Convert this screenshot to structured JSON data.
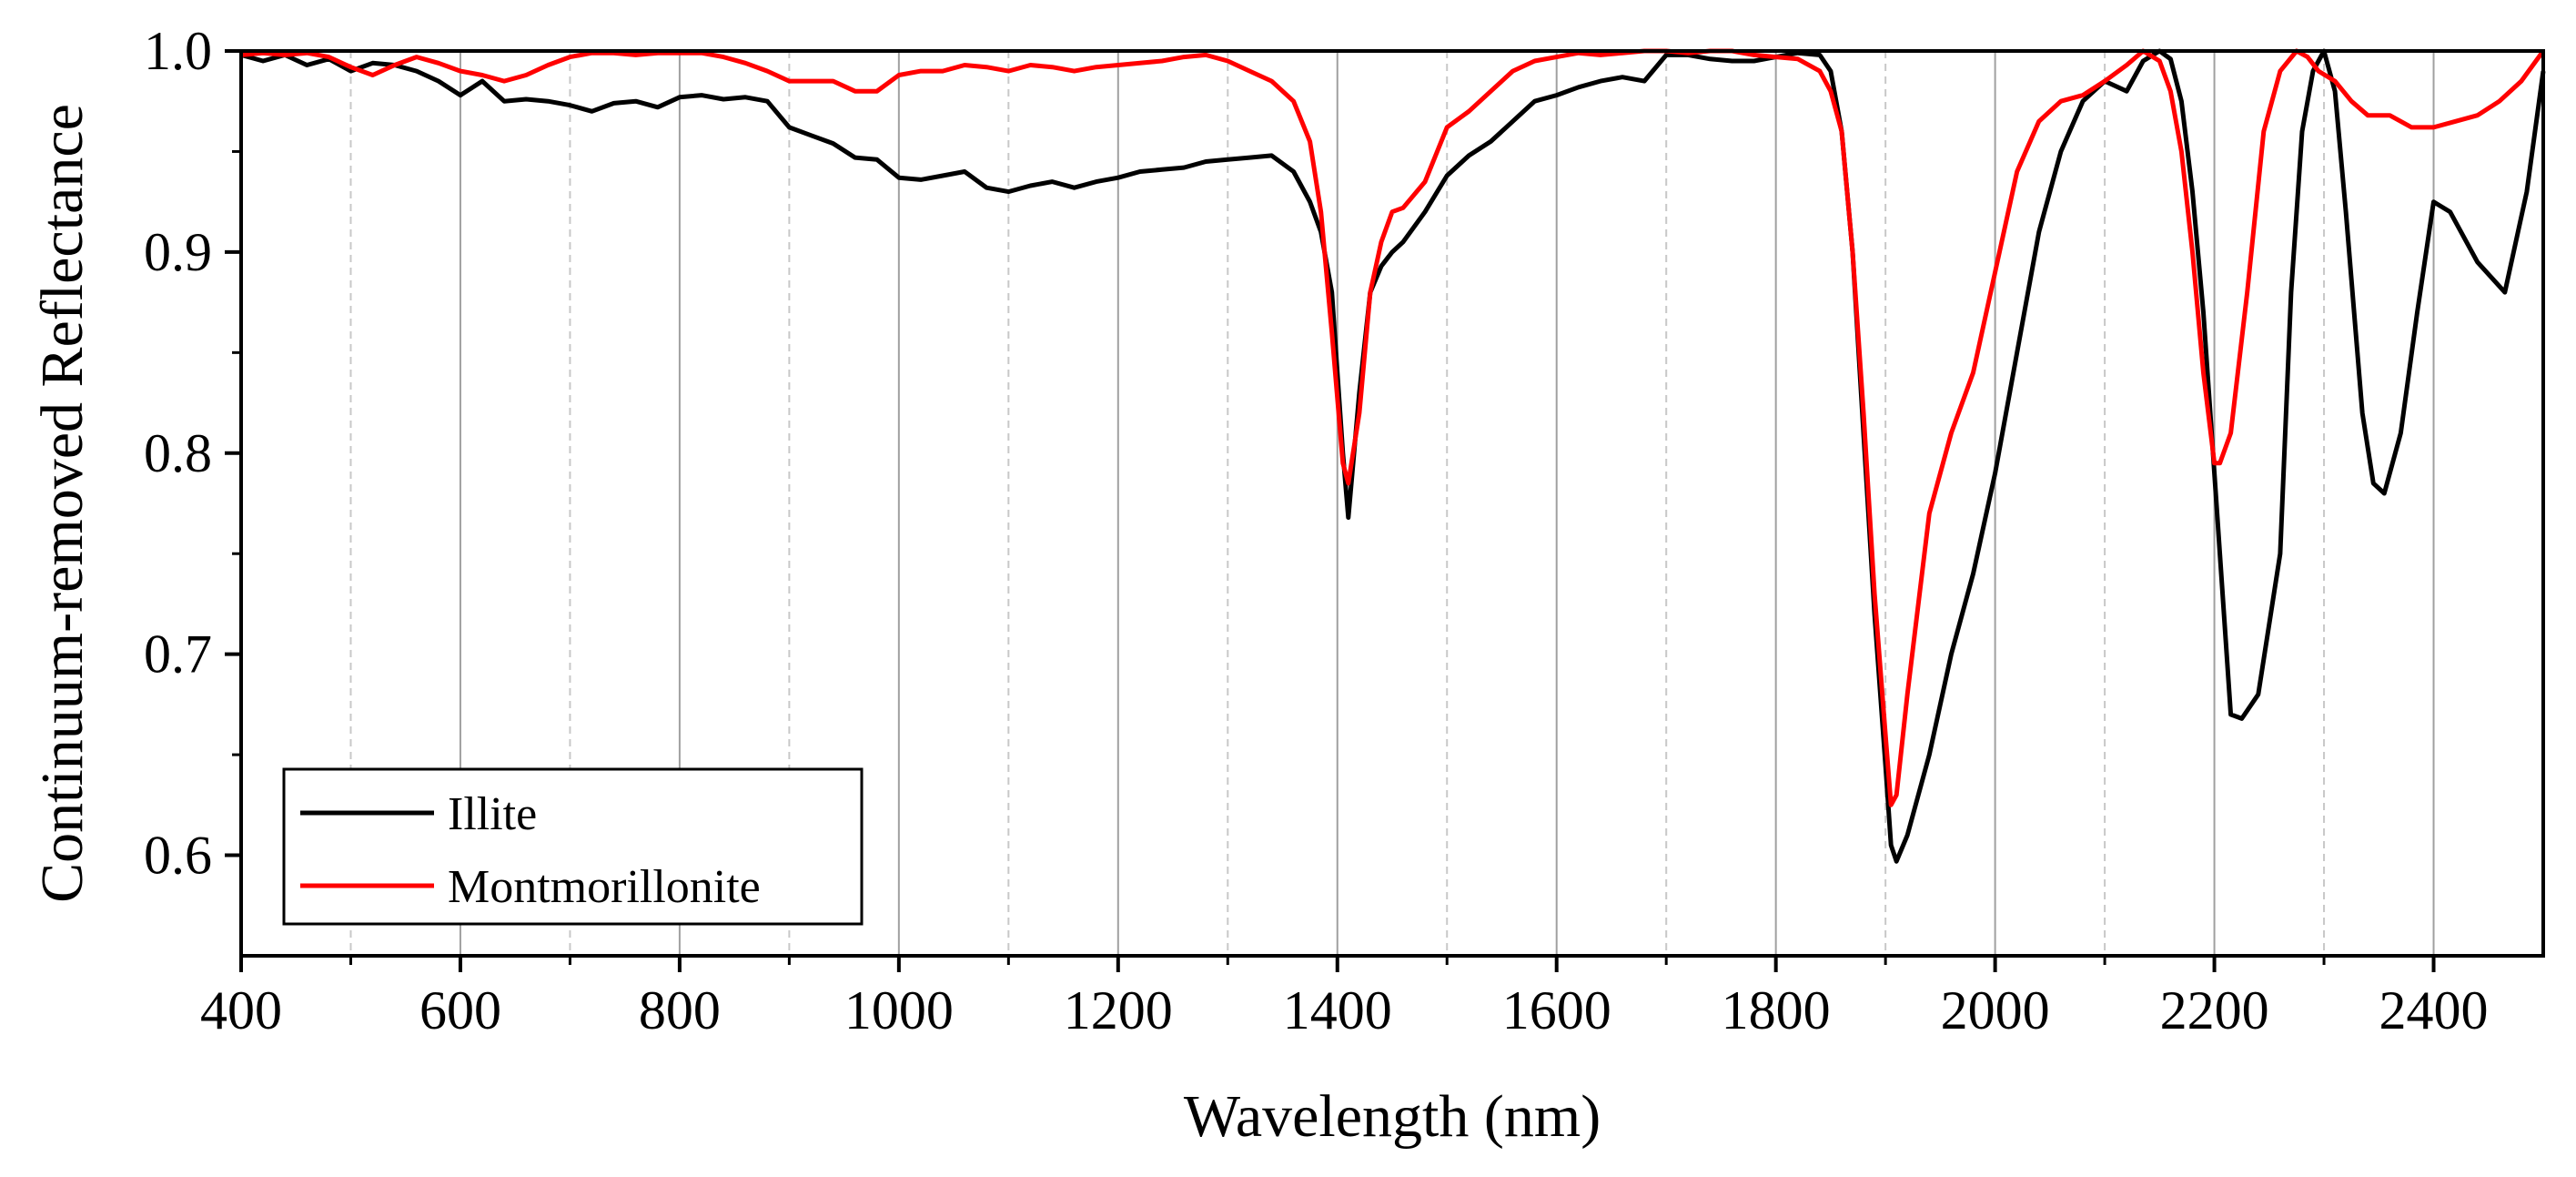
{
  "chart_data": {
    "type": "line",
    "title": "",
    "xlabel": "Wavelength (nm)",
    "ylabel": "Continuum-removed Reflectance",
    "xlim": [
      400,
      2500
    ],
    "ylim": [
      0.55,
      1.0
    ],
    "xticks": [
      400,
      600,
      800,
      1000,
      1200,
      1400,
      1600,
      1800,
      2000,
      2200,
      2400
    ],
    "xtick_labels": [
      "400",
      "600",
      "800",
      "1000",
      "1200",
      "1400",
      "1600",
      "1800",
      "2000",
      "2200",
      "2400"
    ],
    "yticks": [
      0.6,
      0.7,
      0.8,
      0.9,
      1.0
    ],
    "ytick_labels": [
      "0.6",
      "0.7",
      "0.8",
      "0.9",
      "1.0"
    ],
    "grid": "vertical",
    "legend_position": "bottom-left",
    "series": [
      {
        "name": "Illite",
        "color": "#000000",
        "x": [
          400,
          420,
          440,
          460,
          480,
          500,
          520,
          540,
          560,
          580,
          600,
          620,
          640,
          660,
          680,
          700,
          720,
          740,
          760,
          780,
          800,
          820,
          840,
          860,
          880,
          900,
          920,
          940,
          960,
          980,
          1000,
          1020,
          1040,
          1060,
          1080,
          1100,
          1120,
          1140,
          1160,
          1180,
          1200,
          1220,
          1240,
          1260,
          1280,
          1300,
          1320,
          1340,
          1360,
          1375,
          1385,
          1395,
          1405,
          1410,
          1420,
          1430,
          1440,
          1450,
          1460,
          1480,
          1500,
          1520,
          1540,
          1560,
          1580,
          1600,
          1620,
          1640,
          1660,
          1680,
          1700,
          1720,
          1740,
          1760,
          1780,
          1800,
          1820,
          1840,
          1850,
          1860,
          1870,
          1880,
          1890,
          1900,
          1905,
          1910,
          1920,
          1940,
          1960,
          1980,
          2000,
          2020,
          2040,
          2060,
          2080,
          2100,
          2120,
          2135,
          2150,
          2160,
          2170,
          2180,
          2190,
          2200,
          2210,
          2215,
          2225,
          2240,
          2260,
          2270,
          2280,
          2290,
          2300,
          2310,
          2320,
          2335,
          2345,
          2355,
          2370,
          2385,
          2400,
          2415,
          2440,
          2465,
          2485,
          2500
        ],
        "values": [
          0.998,
          0.995,
          0.998,
          0.993,
          0.996,
          0.99,
          0.994,
          0.993,
          0.99,
          0.985,
          0.978,
          0.985,
          0.975,
          0.976,
          0.975,
          0.973,
          0.97,
          0.974,
          0.975,
          0.972,
          0.977,
          0.978,
          0.976,
          0.977,
          0.975,
          0.962,
          0.958,
          0.954,
          0.947,
          0.946,
          0.937,
          0.936,
          0.938,
          0.94,
          0.932,
          0.93,
          0.933,
          0.935,
          0.932,
          0.935,
          0.937,
          0.94,
          0.941,
          0.942,
          0.945,
          0.946,
          0.947,
          0.948,
          0.94,
          0.925,
          0.91,
          0.88,
          0.8,
          0.768,
          0.83,
          0.88,
          0.893,
          0.9,
          0.905,
          0.92,
          0.938,
          0.948,
          0.955,
          0.965,
          0.975,
          0.978,
          0.982,
          0.985,
          0.987,
          0.985,
          0.998,
          0.998,
          0.996,
          0.995,
          0.995,
          0.997,
          0.999,
          0.998,
          0.99,
          0.96,
          0.9,
          0.81,
          0.72,
          0.645,
          0.605,
          0.597,
          0.61,
          0.65,
          0.7,
          0.74,
          0.79,
          0.85,
          0.91,
          0.95,
          0.975,
          0.985,
          0.98,
          0.995,
          1.0,
          0.996,
          0.975,
          0.93,
          0.87,
          0.79,
          0.71,
          0.67,
          0.668,
          0.68,
          0.75,
          0.88,
          0.96,
          0.99,
          1.0,
          0.98,
          0.92,
          0.82,
          0.785,
          0.78,
          0.81,
          0.87,
          0.925,
          0.92,
          0.895,
          0.88,
          0.93,
          0.99
        ]
      },
      {
        "name": "Montmorillonite",
        "color": "#ff0000",
        "x": [
          400,
          420,
          440,
          460,
          480,
          500,
          520,
          540,
          560,
          580,
          600,
          620,
          640,
          660,
          680,
          700,
          720,
          740,
          760,
          780,
          800,
          820,
          840,
          860,
          880,
          900,
          920,
          940,
          960,
          980,
          1000,
          1020,
          1040,
          1060,
          1080,
          1100,
          1120,
          1140,
          1160,
          1180,
          1200,
          1220,
          1240,
          1260,
          1280,
          1300,
          1320,
          1340,
          1360,
          1375,
          1385,
          1395,
          1405,
          1410,
          1420,
          1430,
          1440,
          1450,
          1460,
          1480,
          1500,
          1520,
          1540,
          1560,
          1580,
          1600,
          1620,
          1640,
          1660,
          1680,
          1700,
          1720,
          1740,
          1760,
          1780,
          1800,
          1820,
          1840,
          1850,
          1860,
          1870,
          1880,
          1890,
          1900,
          1905,
          1910,
          1920,
          1940,
          1960,
          1980,
          2000,
          2020,
          2040,
          2060,
          2080,
          2100,
          2120,
          2135,
          2150,
          2160,
          2170,
          2180,
          2190,
          2200,
          2205,
          2215,
          2230,
          2245,
          2260,
          2275,
          2285,
          2295,
          2310,
          2325,
          2340,
          2360,
          2380,
          2400,
          2420,
          2440,
          2460,
          2480,
          2500
        ],
        "values": [
          0.998,
          0.999,
          0.998,
          0.999,
          0.997,
          0.992,
          0.988,
          0.993,
          0.997,
          0.994,
          0.99,
          0.988,
          0.985,
          0.988,
          0.993,
          0.997,
          0.999,
          0.999,
          0.998,
          0.999,
          0.999,
          0.999,
          0.997,
          0.994,
          0.99,
          0.985,
          0.985,
          0.985,
          0.98,
          0.98,
          0.988,
          0.99,
          0.99,
          0.993,
          0.992,
          0.99,
          0.993,
          0.992,
          0.99,
          0.992,
          0.993,
          0.994,
          0.995,
          0.997,
          0.998,
          0.995,
          0.99,
          0.985,
          0.975,
          0.955,
          0.92,
          0.86,
          0.795,
          0.785,
          0.82,
          0.88,
          0.905,
          0.92,
          0.922,
          0.935,
          0.962,
          0.97,
          0.98,
          0.99,
          0.995,
          0.997,
          0.999,
          0.998,
          0.999,
          1.0,
          1.0,
          0.999,
          1.0,
          1.0,
          0.998,
          0.997,
          0.996,
          0.99,
          0.98,
          0.96,
          0.9,
          0.82,
          0.73,
          0.66,
          0.625,
          0.63,
          0.68,
          0.77,
          0.81,
          0.84,
          0.89,
          0.94,
          0.965,
          0.975,
          0.978,
          0.985,
          0.993,
          1.0,
          0.995,
          0.98,
          0.95,
          0.9,
          0.84,
          0.795,
          0.795,
          0.81,
          0.88,
          0.96,
          0.99,
          1.0,
          0.997,
          0.99,
          0.985,
          0.975,
          0.968,
          0.968,
          0.962,
          0.962,
          0.965,
          0.968,
          0.975,
          0.985,
          1.0
        ]
      }
    ]
  }
}
